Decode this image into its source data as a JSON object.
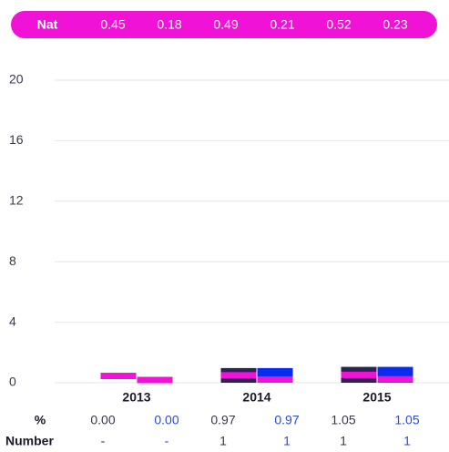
{
  "chart_data": {
    "type": "bar",
    "categories": [
      "2013",
      "2014",
      "2015"
    ],
    "ylim": [
      0,
      20
    ],
    "yticks": [
      0,
      4,
      8,
      12,
      16,
      20
    ],
    "grid": true,
    "nat": {
      "label": "Nat",
      "color": "#f012d6",
      "values": [
        0.45,
        0.18,
        0.49,
        0.21,
        0.52,
        0.23
      ]
    },
    "bars": {
      "colors": [
        "#2b2450",
        "#0a2cf0"
      ],
      "values": [
        0.0,
        0.0,
        0.97,
        0.97,
        1.05,
        1.05
      ],
      "value_labels": [
        "0.00",
        "0.00",
        "0.97",
        "0.97",
        "1.05",
        "1.05"
      ]
    },
    "row_labels": [
      "%",
      "Number"
    ],
    "numbers": [
      "-",
      "-",
      "1",
      "1",
      "1",
      "1"
    ],
    "text_colors": [
      "#3a3650",
      "#2a4bd7"
    ]
  }
}
